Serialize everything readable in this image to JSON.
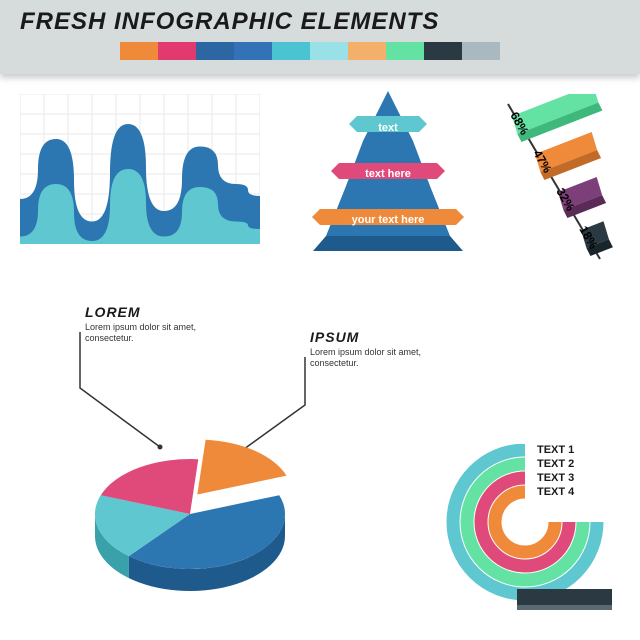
{
  "header": {
    "title": "FRESH INFOGRAPHIC ELEMENTS",
    "swatches": [
      "#ef8a3b",
      "#e23a6e",
      "#2c66a3",
      "#3472b8",
      "#4bc3d1",
      "#9ae0e7",
      "#f3b06a",
      "#63e2a3",
      "#2b3a42",
      "#a9b9bf"
    ]
  },
  "area_chart": {
    "type": "area",
    "grid_color": "#e8e8e8",
    "background_color": "#ffffff",
    "series": [
      {
        "color": "#2c77b2",
        "points": [
          [
            0,
            70
          ],
          [
            15,
            30
          ],
          [
            30,
            85
          ],
          [
            45,
            20
          ],
          [
            60,
            78
          ],
          [
            75,
            35
          ],
          [
            90,
            60
          ],
          [
            100,
            68
          ]
        ]
      },
      {
        "color": "#5ec7d0",
        "points": [
          [
            0,
            95
          ],
          [
            15,
            60
          ],
          [
            30,
            98
          ],
          [
            45,
            50
          ],
          [
            60,
            95
          ],
          [
            75,
            62
          ],
          [
            90,
            85
          ],
          [
            100,
            90
          ]
        ]
      }
    ]
  },
  "pyramid": {
    "type": "pyramid",
    "levels": [
      {
        "label": "text",
        "color": "#2c77b2",
        "banner": "#5ec7d0"
      },
      {
        "label": "text here",
        "color": "#2c77b2",
        "banner": "#e04a7b"
      },
      {
        "label": "your text here",
        "color": "#2c77b2",
        "banner": "#ef8a3b"
      }
    ]
  },
  "bars3d": {
    "type": "bar",
    "bars": [
      {
        "pct": "68%",
        "color": "#63e2a3",
        "side": "#3fb87c",
        "len": 90
      },
      {
        "pct": "47%",
        "color": "#ef8a3b",
        "side": "#c26a28",
        "len": 63
      },
      {
        "pct": "32%",
        "color": "#7c3f7a",
        "side": "#5a2b58",
        "len": 43
      },
      {
        "pct": "18%",
        "color": "#2b3a42",
        "side": "#1a252b",
        "len": 25
      }
    ]
  },
  "callouts": {
    "lorem": {
      "title": "LOREM",
      "body": "Lorem ipsum dolor sit amet, consectetur."
    },
    "ipsum": {
      "title": "IPSUM",
      "body": "Lorem ipsum dolor sit amet, consectetur."
    }
  },
  "pie": {
    "type": "pie",
    "slices": [
      {
        "color": "#2c77b2",
        "side": "#1f5a8c",
        "start": -20,
        "end": 130
      },
      {
        "color": "#5ec7d0",
        "side": "#3aa0aa",
        "start": 130,
        "end": 200
      },
      {
        "color": "#e04a7b",
        "side": "#b83360",
        "start": 200,
        "end": 275
      },
      {
        "color": "#ef8a3b",
        "side": "#c26a28",
        "start": 275,
        "end": 340,
        "explode": true
      }
    ]
  },
  "arcs": {
    "type": "radial",
    "items": [
      {
        "label": "TEXT 1",
        "color": "#5ec7d0",
        "r": 72
      },
      {
        "label": "TEXT 2",
        "color": "#63e2a3",
        "r": 58
      },
      {
        "label": "TEXT 3",
        "color": "#e04a7b",
        "r": 44
      },
      {
        "label": "TEXT 4",
        "color": "#ef8a3b",
        "r": 30
      }
    ],
    "base_color": "#2b3a42"
  }
}
